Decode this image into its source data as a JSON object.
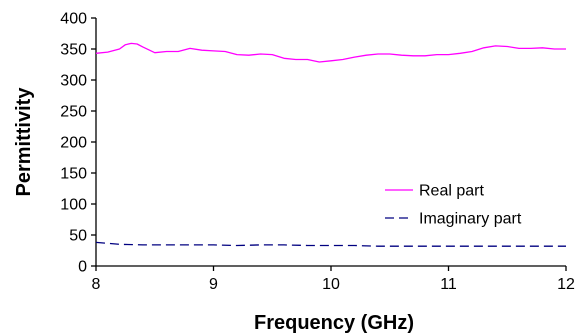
{
  "chart_data": {
    "type": "line",
    "title": "",
    "xlabel": "Frequency (GHz)",
    "ylabel": "Permittivity",
    "xlim": [
      8,
      12
    ],
    "ylim": [
      0,
      400
    ],
    "grid": false,
    "legend_position": "bottom-right",
    "x_ticks": [
      "8",
      "9",
      "10",
      "11",
      "12"
    ],
    "y_ticks": [
      "0",
      "50",
      "100",
      "150",
      "200",
      "250",
      "300",
      "350",
      "400"
    ],
    "x_tick_values": [
      8,
      9,
      10,
      11,
      12
    ],
    "y_tick_values": [
      0,
      50,
      100,
      150,
      200,
      250,
      300,
      350,
      400
    ],
    "series": [
      {
        "name": "Real part",
        "color": "#ff00ff",
        "dash": "solid",
        "x": [
          8.0,
          8.1,
          8.2,
          8.25,
          8.3,
          8.35,
          8.4,
          8.5,
          8.6,
          8.7,
          8.8,
          8.9,
          9.0,
          9.1,
          9.2,
          9.3,
          9.4,
          9.5,
          9.6,
          9.7,
          9.8,
          9.9,
          10.0,
          10.1,
          10.2,
          10.3,
          10.4,
          10.5,
          10.6,
          10.7,
          10.8,
          10.9,
          11.0,
          11.1,
          11.2,
          11.3,
          11.4,
          11.5,
          11.6,
          11.7,
          11.8,
          11.9,
          12.0
        ],
        "y": [
          343,
          345,
          350,
          357,
          359,
          358,
          353,
          344,
          346,
          346,
          351,
          348,
          347,
          346,
          341,
          340,
          342,
          341,
          335,
          333,
          333,
          329,
          331,
          333,
          337,
          340,
          342,
          342,
          340,
          339,
          339,
          341,
          341,
          343,
          346,
          352,
          355,
          354,
          351,
          351,
          352,
          350,
          350
        ]
      },
      {
        "name": "Imaginary part",
        "color": "#000080",
        "dash": "dashed",
        "x": [
          8.0,
          8.2,
          8.4,
          8.6,
          8.8,
          9.0,
          9.2,
          9.4,
          9.6,
          9.8,
          10.0,
          10.2,
          10.4,
          10.6,
          10.8,
          11.0,
          11.2,
          11.4,
          11.6,
          11.8,
          12.0
        ],
        "y": [
          38,
          35,
          34,
          34,
          34,
          34,
          33,
          34,
          34,
          33,
          33,
          33,
          32,
          32,
          32,
          32,
          32,
          32,
          32,
          32,
          32
        ]
      }
    ]
  }
}
